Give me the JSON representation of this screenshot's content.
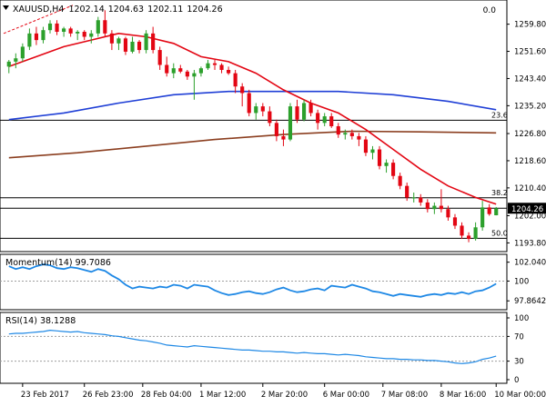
{
  "chart_data": [
    {
      "type": "candlestick",
      "title": {
        "symbol": "XAUUSD,H4",
        "ohlc": [
          "1202.14",
          "1204.63",
          "1202.11",
          "1204.26"
        ],
        "marker_value": "0.0"
      },
      "ylim": [
        1192,
        1266
      ],
      "y_ticks": [
        "1259.80",
        "1251.60",
        "1243.40",
        "1235.20",
        "1226.80",
        "1218.60",
        "1210.40",
        "1202.00",
        "1193.80"
      ],
      "last_price_label": "1204.26",
      "current_price": 1204.26,
      "fib_levels": [
        {
          "label": "23.6",
          "value": 1230.8
        },
        {
          "label": "38.2",
          "value": 1207.4
        },
        {
          "label": "50.0",
          "value": 1195.2
        }
      ],
      "colors": {
        "bull": "#2ca02c",
        "bear": "#e30613",
        "sma20": "#e30613",
        "sma100": "#1f3fd6",
        "sma200": "#8b3e1f",
        "fib": "#000000",
        "channel": "#e30613"
      },
      "candles": [
        [
          1247.0,
          1249.0,
          1245.0,
          1248.5
        ],
        [
          1248.5,
          1251.0,
          1246.5,
          1249.5
        ],
        [
          1249.5,
          1254.0,
          1248.5,
          1253.0
        ],
        [
          1253.0,
          1258.5,
          1252.0,
          1257.0
        ],
        [
          1257.0,
          1259.0,
          1253.5,
          1255.0
        ],
        [
          1255.0,
          1259.0,
          1254.0,
          1258.0
        ],
        [
          1258.0,
          1261.0,
          1257.0,
          1260.0
        ],
        [
          1260.0,
          1261.0,
          1256.5,
          1257.5
        ],
        [
          1257.5,
          1259.0,
          1256.0,
          1258.5
        ],
        [
          1258.5,
          1259.0,
          1256.0,
          1257.0
        ],
        [
          1257.0,
          1258.0,
          1255.0,
          1257.5
        ],
        [
          1257.5,
          1258.0,
          1255.0,
          1256.0
        ],
        [
          1256.0,
          1258.0,
          1254.0,
          1257.0
        ],
        [
          1257.0,
          1262.0,
          1256.0,
          1261.0
        ],
        [
          1261.0,
          1264.0,
          1256.0,
          1257.0
        ],
        [
          1257.0,
          1258.0,
          1252.0,
          1254.0
        ],
        [
          1254.0,
          1256.0,
          1252.0,
          1255.5
        ],
        [
          1255.5,
          1256.0,
          1250.5,
          1251.5
        ],
        [
          1251.5,
          1256.0,
          1251.0,
          1254.5
        ],
        [
          1254.5,
          1255.0,
          1251.0,
          1252.0
        ],
        [
          1252.0,
          1258.0,
          1251.0,
          1257.0
        ],
        [
          1257.0,
          1259.0,
          1251.0,
          1252.0
        ],
        [
          1252.0,
          1253.0,
          1246.0,
          1247.5
        ],
        [
          1247.5,
          1250.0,
          1244.0,
          1245.0
        ],
        [
          1245.0,
          1248.0,
          1243.5,
          1246.5
        ],
        [
          1246.5,
          1247.5,
          1245.0,
          1245.5
        ],
        [
          1245.5,
          1246.0,
          1243.0,
          1244.0
        ],
        [
          1244.0,
          1246.0,
          1237.0,
          1245.0
        ],
        [
          1245.0,
          1247.0,
          1244.0,
          1246.5
        ],
        [
          1246.5,
          1249.0,
          1246.0,
          1248.0
        ],
        [
          1248.0,
          1249.0,
          1246.0,
          1247.5
        ],
        [
          1247.5,
          1248.0,
          1245.0,
          1246.0
        ],
        [
          1246.0,
          1247.0,
          1244.5,
          1245.0
        ],
        [
          1245.0,
          1246.0,
          1239.0,
          1241.0
        ],
        [
          1241.0,
          1242.0,
          1235.0,
          1239.0
        ],
        [
          1239.0,
          1240.0,
          1232.0,
          1233.0
        ],
        [
          1233.0,
          1236.0,
          1231.0,
          1235.0
        ],
        [
          1235.0,
          1236.0,
          1232.0,
          1233.5
        ],
        [
          1233.5,
          1235.0,
          1229.0,
          1230.0
        ],
        [
          1230.0,
          1231.0,
          1224.5,
          1226.0
        ],
        [
          1226.0,
          1228.0,
          1223.0,
          1225.0
        ],
        [
          1225.0,
          1236.0,
          1224.5,
          1235.0
        ],
        [
          1235.0,
          1237.0,
          1230.0,
          1231.0
        ],
        [
          1231.0,
          1237.0,
          1230.5,
          1236.0
        ],
        [
          1236.0,
          1237.0,
          1232.0,
          1233.0
        ],
        [
          1233.0,
          1234.0,
          1228.0,
          1230.0
        ],
        [
          1230.0,
          1233.0,
          1229.0,
          1232.0
        ],
        [
          1232.0,
          1233.0,
          1228.5,
          1229.0
        ],
        [
          1229.0,
          1230.0,
          1225.5,
          1226.5
        ],
        [
          1226.5,
          1228.0,
          1225.0,
          1227.0
        ],
        [
          1227.0,
          1228.0,
          1225.0,
          1226.0
        ],
        [
          1226.0,
          1227.0,
          1223.0,
          1225.0
        ],
        [
          1225.0,
          1226.0,
          1220.0,
          1221.0
        ],
        [
          1221.0,
          1223.0,
          1219.0,
          1222.0
        ],
        [
          1222.0,
          1223.0,
          1216.0,
          1217.0
        ],
        [
          1217.0,
          1219.0,
          1215.0,
          1218.0
        ],
        [
          1218.0,
          1219.0,
          1213.0,
          1214.0
        ],
        [
          1214.0,
          1215.0,
          1210.0,
          1211.0
        ],
        [
          1211.0,
          1212.0,
          1206.5,
          1207.5
        ],
        [
          1207.5,
          1209.0,
          1206.0,
          1207.5
        ],
        [
          1207.5,
          1208.5,
          1205.0,
          1206.0
        ],
        [
          1206.0,
          1207.0,
          1203.0,
          1204.0
        ],
        [
          1204.0,
          1206.0,
          1202.5,
          1205.0
        ],
        [
          1205.0,
          1210.0,
          1203.0,
          1204.0
        ],
        [
          1204.0,
          1205.0,
          1200.5,
          1201.5
        ],
        [
          1201.5,
          1202.5,
          1198.0,
          1199.0
        ],
        [
          1199.0,
          1200.0,
          1195.0,
          1196.0
        ],
        [
          1196.0,
          1197.0,
          1194.0,
          1195.0
        ],
        [
          1195.0,
          1200.0,
          1194.5,
          1198.5
        ],
        [
          1198.5,
          1206.5,
          1197.5,
          1204.5
        ],
        [
          1204.5,
          1205.5,
          1202.0,
          1202.5
        ],
        [
          1202.14,
          1204.63,
          1202.11,
          1204.26
        ]
      ],
      "sma20": [
        [
          0,
          1247
        ],
        [
          4,
          1250
        ],
        [
          8,
          1253
        ],
        [
          12,
          1255
        ],
        [
          16,
          1257
        ],
        [
          20,
          1256
        ],
        [
          24,
          1254
        ],
        [
          28,
          1250
        ],
        [
          32,
          1248.5
        ],
        [
          36,
          1245
        ],
        [
          40,
          1240
        ],
        [
          44,
          1236
        ],
        [
          48,
          1233
        ],
        [
          52,
          1228
        ],
        [
          56,
          1222
        ],
        [
          60,
          1216
        ],
        [
          64,
          1211
        ],
        [
          68,
          1207.5
        ],
        [
          71,
          1205.5
        ]
      ],
      "sma100": [
        [
          0,
          1231
        ],
        [
          8,
          1233
        ],
        [
          16,
          1236
        ],
        [
          24,
          1238.5
        ],
        [
          32,
          1239.5
        ],
        [
          40,
          1239.5
        ],
        [
          48,
          1239.5
        ],
        [
          56,
          1238.5
        ],
        [
          64,
          1236.5
        ],
        [
          71,
          1234
        ]
      ],
      "sma200": [
        [
          0,
          1219.5
        ],
        [
          10,
          1221
        ],
        [
          20,
          1223
        ],
        [
          30,
          1225
        ],
        [
          40,
          1226.5
        ],
        [
          50,
          1227.5
        ],
        [
          60,
          1227.3
        ],
        [
          71,
          1227
        ]
      ]
    },
    {
      "type": "line",
      "title": "Momentum(14) 99.7086",
      "ylim": [
        97.3,
        102.3
      ],
      "y_ticks": [
        "102.0402",
        "100",
        "97.8642"
      ],
      "ref_level": 100,
      "color": "#1e88e5",
      "values": [
        101.6,
        101.3,
        101.5,
        101.3,
        101.6,
        101.8,
        101.7,
        101.4,
        101.3,
        101.5,
        101.4,
        101.2,
        101.0,
        101.3,
        101.1,
        100.6,
        100.2,
        99.6,
        99.2,
        99.4,
        99.3,
        99.2,
        99.4,
        99.3,
        99.6,
        99.5,
        99.2,
        99.6,
        99.5,
        99.4,
        99.0,
        98.7,
        98.5,
        98.6,
        98.8,
        98.9,
        98.7,
        98.6,
        98.8,
        99.1,
        99.3,
        99.0,
        98.8,
        98.9,
        99.1,
        99.2,
        99.0,
        99.5,
        99.4,
        99.3,
        99.6,
        99.4,
        99.2,
        98.9,
        98.8,
        98.6,
        98.4,
        98.6,
        98.5,
        98.4,
        98.3,
        98.5,
        98.6,
        98.5,
        98.7,
        98.6,
        98.8,
        98.6,
        98.9,
        99.0,
        99.3,
        99.7086
      ]
    },
    {
      "type": "line",
      "title": "RSI(14) 38.1288",
      "ylim": [
        0,
        100
      ],
      "y_ticks": [
        "100",
        "70",
        "30",
        "0"
      ],
      "ref_levels": [
        70,
        30
      ],
      "color": "#1e88e5",
      "values": [
        74,
        75,
        75,
        76,
        77,
        78,
        80,
        79,
        78,
        77,
        78,
        76,
        75,
        74,
        73,
        71,
        70,
        68,
        66,
        64,
        63,
        61,
        59,
        56,
        55,
        54,
        53,
        55,
        54,
        53,
        52,
        51,
        50,
        49,
        48,
        48,
        47,
        46,
        46,
        45,
        45,
        44,
        43,
        44,
        43,
        42,
        42,
        41,
        40,
        41,
        40,
        39,
        37,
        36,
        35,
        34,
        34,
        33,
        33,
        32,
        32,
        31,
        31,
        30,
        29,
        27,
        26,
        27,
        29,
        33,
        35,
        38.13
      ]
    }
  ],
  "x_axis": {
    "labels": [
      "23 Feb 2017",
      "26 Feb 23:00",
      "28 Feb 04:00",
      "1 Mar 12:00",
      "2 Mar 20:00",
      "6 Mar 00:00",
      "7 Mar 08:00",
      "8 Mar 16:00",
      "10 Mar 00:00"
    ],
    "label_positions": [
      2,
      11,
      19.5,
      28,
      37,
      46,
      54.5,
      63,
      71
    ]
  }
}
